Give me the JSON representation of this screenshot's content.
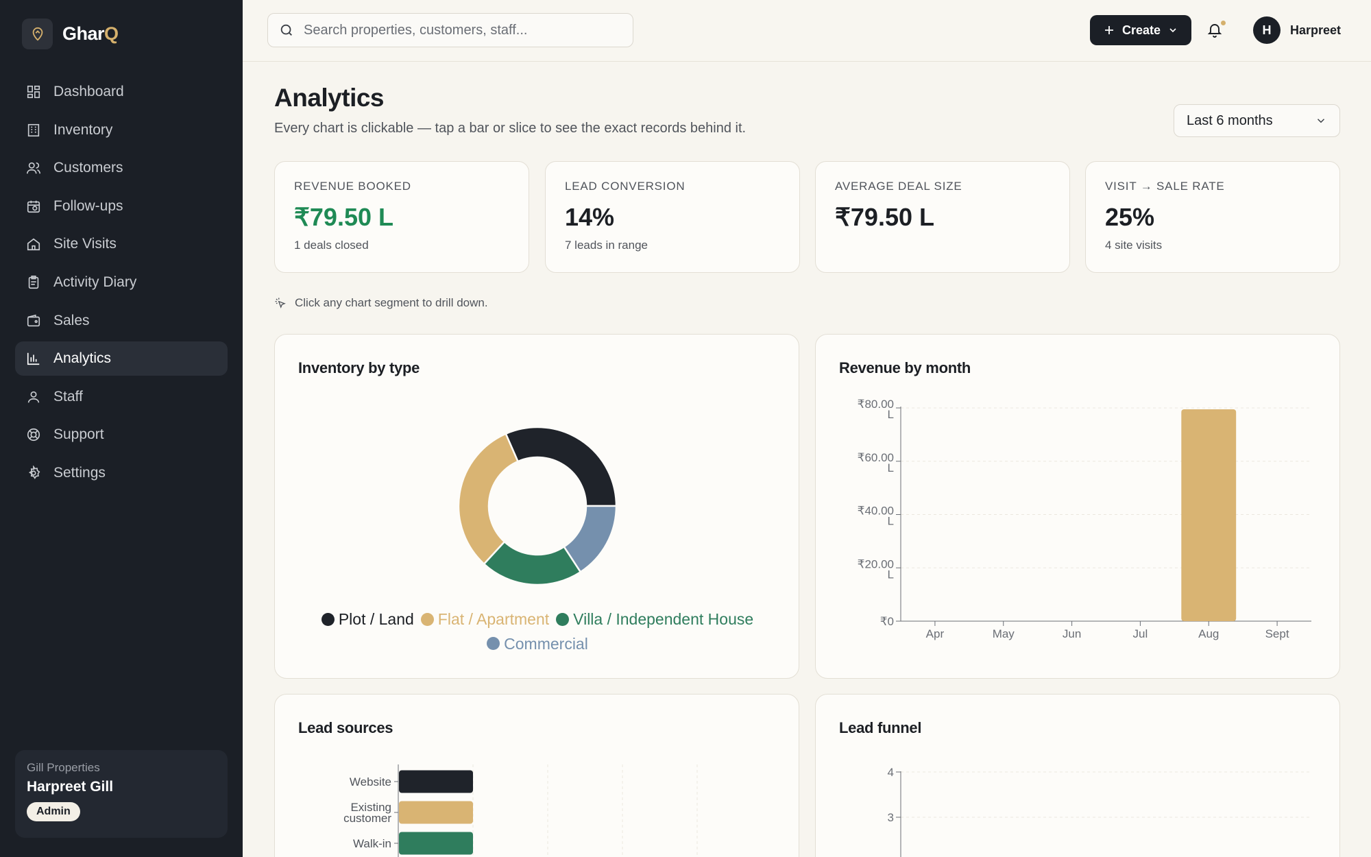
{
  "app": {
    "brand_main": "Ghar",
    "brand_accent": "Q",
    "accent_color": "#d5b06c",
    "sidebar_bg": "#1b1f26"
  },
  "sidebar": {
    "items": [
      {
        "label": "Dashboard",
        "icon": "dashboard-icon"
      },
      {
        "label": "Inventory",
        "icon": "building-icon"
      },
      {
        "label": "Customers",
        "icon": "users-icon"
      },
      {
        "label": "Follow-ups",
        "icon": "calendar-clock-icon"
      },
      {
        "label": "Site Visits",
        "icon": "home-icon"
      },
      {
        "label": "Activity Diary",
        "icon": "clipboard-icon"
      },
      {
        "label": "Sales",
        "icon": "wallet-icon"
      },
      {
        "label": "Analytics",
        "icon": "bar-chart-icon",
        "active": true
      },
      {
        "label": "Staff",
        "icon": "user-icon"
      },
      {
        "label": "Support",
        "icon": "lifebuoy-icon"
      },
      {
        "label": "Settings",
        "icon": "gear-icon"
      }
    ],
    "org": {
      "name": "Gill Properties",
      "user": "Harpreet Gill",
      "role": "Admin"
    }
  },
  "topbar": {
    "search_placeholder": "Search properties, customers, staff...",
    "create_label": "Create",
    "avatar_initial": "H",
    "user_name": "Harpreet"
  },
  "page": {
    "title": "Analytics",
    "subtitle": "Every chart is clickable — tap a bar or slice to see the exact records behind it.",
    "range": "Last 6 months",
    "hint": "Click any chart segment to drill down."
  },
  "kpis": [
    {
      "label": "REVENUE BOOKED",
      "value": "₹79.50 L",
      "sub": "1 deals closed",
      "accent": "green"
    },
    {
      "label": "LEAD CONVERSION",
      "value": "14%",
      "sub": "7 leads in range"
    },
    {
      "label": "AVERAGE DEAL SIZE",
      "value": "₹79.50 L",
      "sub": ""
    },
    {
      "label": "VISIT → SALE RATE",
      "value": "25%",
      "sub": "4 site visits"
    }
  ],
  "cards": {
    "inventory_title": "Inventory by type",
    "revenue_title": "Revenue by month",
    "lead_sources_title": "Lead sources",
    "lead_funnel_title": "Lead funnel"
  },
  "chart_data": [
    {
      "type": "pie",
      "title": "Inventory by type",
      "categories": [
        "Plot / Land",
        "Flat / Apartment",
        "Villa / Independent House",
        "Commercial"
      ],
      "values": [
        3,
        3,
        2,
        1.5
      ],
      "colors": [
        "#1f232a",
        "#d9b473",
        "#2f7d5d",
        "#7590ad"
      ],
      "donut": true,
      "legend": "bottom"
    },
    {
      "type": "bar",
      "title": "Revenue by month",
      "categories": [
        "Apr",
        "May",
        "Jun",
        "Jul",
        "Aug",
        "Sept"
      ],
      "values": [
        0,
        0,
        0,
        0,
        79.5,
        0
      ],
      "ylim": [
        0,
        80
      ],
      "yticks": [
        0,
        20,
        40,
        60,
        80
      ],
      "ytick_labels": [
        "₹0",
        "₹20.00 L",
        "₹40.00 L",
        "₹60.00 L",
        "₹80.00 L"
      ],
      "color": "#d9b473",
      "grid": true
    },
    {
      "type": "bar",
      "orientation": "horizontal",
      "title": "Lead sources",
      "categories": [
        "Website",
        "Existing customer",
        "Walk-in"
      ],
      "values": [
        1,
        1,
        1
      ],
      "colors": [
        "#1f232a",
        "#d9b473",
        "#2f7d5d"
      ]
    },
    {
      "type": "bar",
      "title": "Lead funnel",
      "yticks": [
        3,
        4
      ],
      "grid": true
    }
  ]
}
